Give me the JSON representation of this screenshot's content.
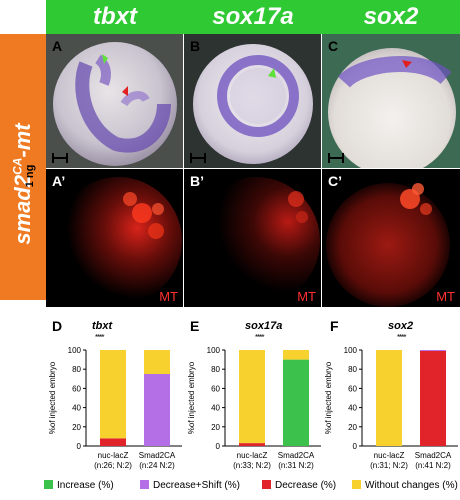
{
  "genes": [
    "tbxt",
    "sox17a",
    "sox2"
  ],
  "side": {
    "construct": "smad2",
    "superscript": "CA",
    "suffix": "-mt",
    "dose": "1 ng"
  },
  "panels": {
    "top": [
      "A",
      "B",
      "C"
    ],
    "bottom": [
      "A’",
      "B’",
      "C’"
    ],
    "bottom_tag": "MT"
  },
  "colors": {
    "header_green": "#2ec933",
    "side_orange": "#f07a22",
    "increase": "#3cc24c",
    "decrease_shift": "#b46ee6",
    "decrease": "#e0242a",
    "without_changes": "#f7d22e",
    "mt_text": "#ff3030"
  },
  "chart_data": [
    {
      "type": "bar",
      "panel": "D",
      "gene": "tbxt",
      "significance": "****",
      "ylabel": "%of injected embryo",
      "ylim": [
        0,
        100
      ],
      "yticks": [
        "0",
        "20",
        "40",
        "60",
        "80",
        "100"
      ],
      "categories": [
        "nuc-lacZ",
        "Smad2CA"
      ],
      "category_notes": [
        "(n:26; N:2)",
        "(n:24 N:2)"
      ],
      "stacked": true,
      "series": [
        {
          "name": "Decrease (%)",
          "color": "#e0242a",
          "values": [
            8,
            0
          ]
        },
        {
          "name": "Decrease+Shift (%)",
          "color": "#b46ee6",
          "values": [
            0,
            75
          ]
        },
        {
          "name": "Without changes (%)",
          "color": "#f7d22e",
          "values": [
            92,
            25
          ]
        }
      ]
    },
    {
      "type": "bar",
      "panel": "E",
      "gene": "sox17a",
      "significance": "****",
      "ylabel": "%of injected embryo",
      "ylim": [
        0,
        100
      ],
      "yticks": [
        "0",
        "20",
        "40",
        "60",
        "80",
        "100"
      ],
      "categories": [
        "nuc-lacZ",
        "Smad2CA"
      ],
      "category_notes": [
        "(n:33; N:2)",
        "(n:31 N:2)"
      ],
      "stacked": true,
      "series": [
        {
          "name": "Increase (%)",
          "color": "#3cc24c",
          "values": [
            0,
            90
          ]
        },
        {
          "name": "Decrease (%)",
          "color": "#e0242a",
          "values": [
            3,
            0
          ]
        },
        {
          "name": "Without changes (%)",
          "color": "#f7d22e",
          "values": [
            97,
            10
          ]
        }
      ]
    },
    {
      "type": "bar",
      "panel": "F",
      "gene": "sox2",
      "significance": "****",
      "ylabel": "%of injected embryo",
      "ylim": [
        0,
        100
      ],
      "yticks": [
        "0",
        "20",
        "40",
        "60",
        "80",
        "100"
      ],
      "categories": [
        "nuc-lacZ",
        "Smad2CA"
      ],
      "category_notes": [
        "(n:31; N:2)",
        "(n:41 N:2)"
      ],
      "stacked": true,
      "series": [
        {
          "name": "Decrease (%)",
          "color": "#e0242a",
          "values": [
            0,
            99
          ]
        },
        {
          "name": "Decrease+Shift (%)",
          "color": "#b46ee6",
          "values": [
            0,
            1
          ]
        },
        {
          "name": "Without changes (%)",
          "color": "#f7d22e",
          "values": [
            100,
            0
          ]
        }
      ]
    }
  ],
  "legend": [
    {
      "label": "Increase (%)",
      "color": "#3cc24c"
    },
    {
      "label": "Decrease+Shift (%)",
      "color": "#b46ee6"
    },
    {
      "label": "Decrease (%)",
      "color": "#e0242a"
    },
    {
      "label": "Without changes (%)",
      "color": "#f7d22e"
    }
  ]
}
